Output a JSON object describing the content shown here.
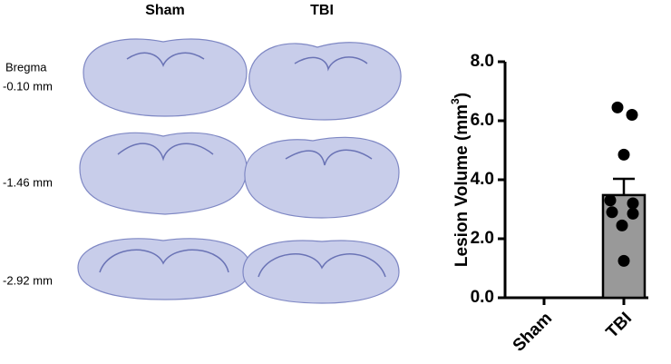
{
  "figure": {
    "columns": [
      "Sham",
      "TBI"
    ],
    "row_labels": [
      [
        "Bregma",
        "-0.10 mm"
      ],
      [
        "-1.46 mm"
      ],
      [
        "-2.92 mm"
      ]
    ]
  },
  "chart_data": {
    "type": "bar",
    "categories": [
      "Sham",
      "TBI"
    ],
    "values": [
      0,
      3.48
    ],
    "errors": [
      0,
      0.55
    ],
    "points": [
      [],
      [
        6.45,
        6.2,
        4.85,
        3.3,
        3.2,
        2.9,
        2.85,
        2.45,
        1.25
      ]
    ],
    "color": "#999999",
    "point_color": "#000000",
    "ylabel_parts": [
      "Lesion Volume (mm",
      "3",
      ")"
    ],
    "ylim": [
      0,
      8
    ],
    "yticks": [
      {
        "value": 0,
        "label": "0.0"
      },
      {
        "value": 2,
        "label": "2.0"
      },
      {
        "value": 4,
        "label": "4.0"
      },
      {
        "value": 6,
        "label": "6.0"
      },
      {
        "value": 8,
        "label": "8.0"
      }
    ]
  }
}
